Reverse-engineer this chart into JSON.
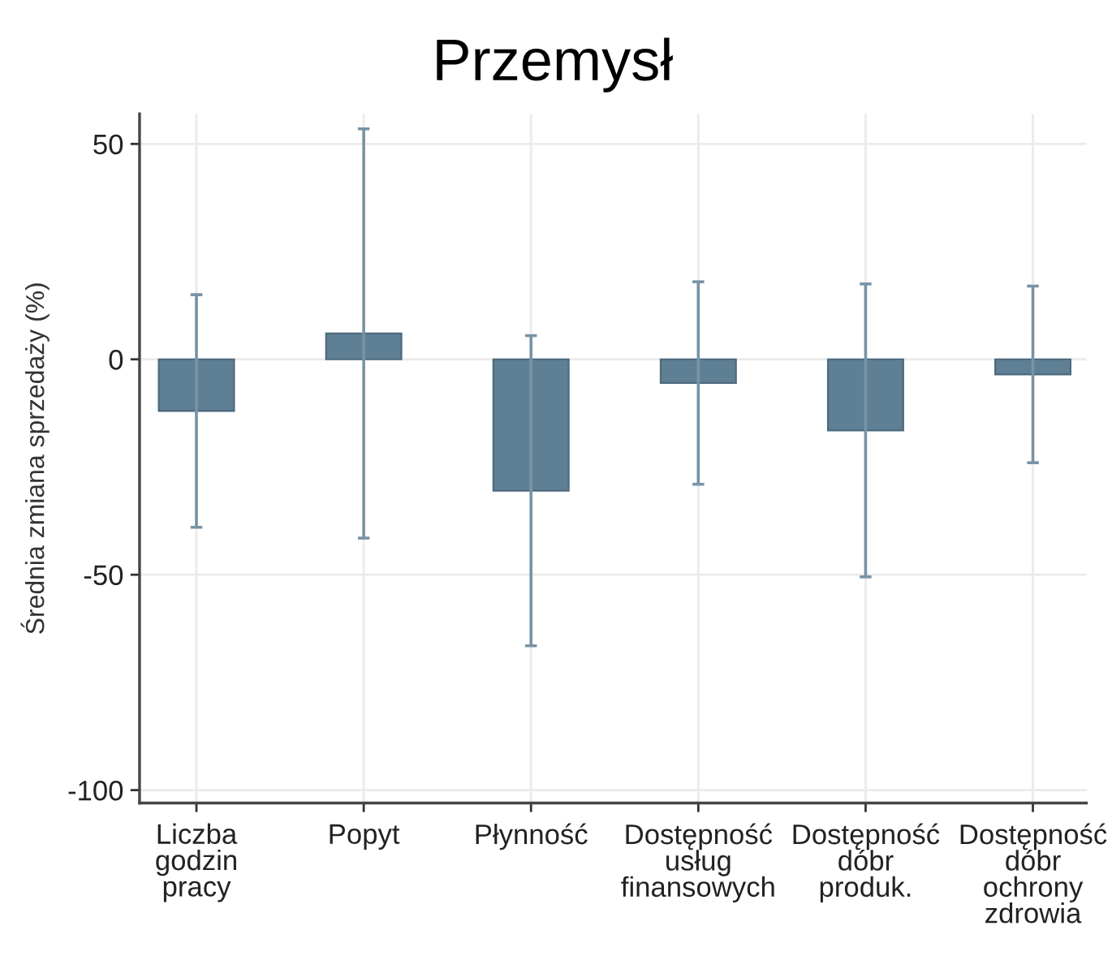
{
  "chart_data": {
    "type": "bar",
    "title": "Przemysł",
    "ylabel": "Średnia zmiana sprzedaży (%)",
    "categories": [
      "Liczba\ngodzin\npracy",
      "Popyt",
      "Płynność",
      "Dostępność\nusług\nfinansowych",
      "Dostępność\ndóbr\nproduk.",
      "Dostępność\ndóbr\nochrony\nzdrowia"
    ],
    "values": [
      -12,
      6,
      -30.5,
      -5.5,
      -16.5,
      -3.5
    ],
    "errors": [
      27,
      47.5,
      36,
      23.5,
      34,
      20.5
    ],
    "color": "#5f7f94",
    "ylim": [
      -103,
      57
    ],
    "yticks": [
      -100,
      -50,
      0,
      50
    ],
    "grid": true
  }
}
